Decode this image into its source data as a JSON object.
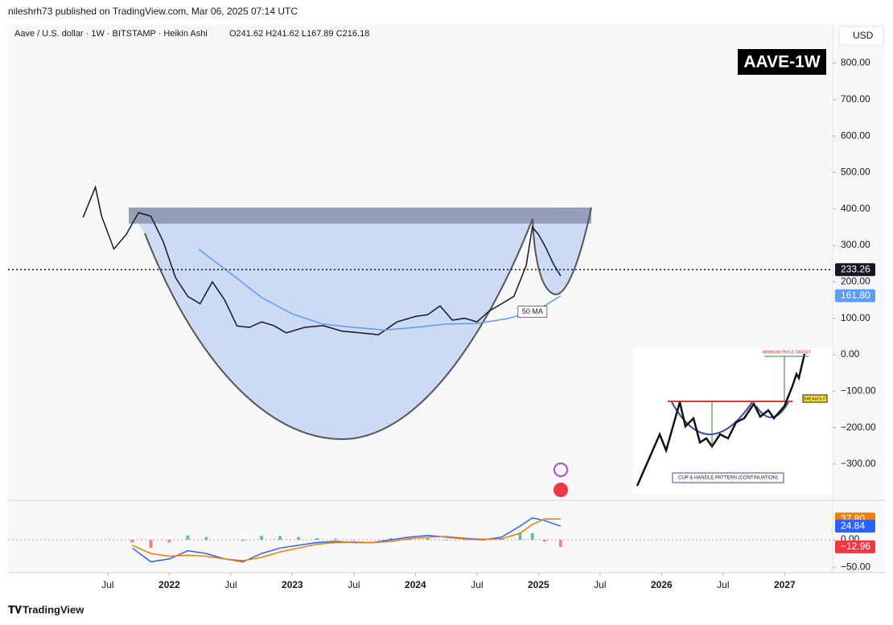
{
  "header": {
    "byline": "nileshrh73 published on TradingView.com, Mar 06, 2025 07:14 UTC",
    "legend": "Aave / U.S. dollar · 1W · BITSTAMP · Heikin Ashi",
    "ohlc": "O241.62 H241.62 L167.89 C216.18",
    "currency": "USD",
    "symbol_badge": "AAVE-1W"
  },
  "inset": {
    "target": "MINIMUM PRICE TARGET",
    "breakout": "BREAKOUT",
    "caption": "CUP & HANDLE PATTERN (CONTINUATION)"
  },
  "footer": {
    "brand": "TradingView"
  },
  "chart_data": [
    {
      "type": "line",
      "xlim": [
        2020.69,
        2027.39
      ],
      "ylim": [
        -395,
        907
      ],
      "yticks": [
        {
          "value": 800,
          "label": "800.00"
        },
        {
          "value": 700,
          "label": "700.00"
        },
        {
          "value": 600,
          "label": "600.00"
        },
        {
          "value": 500,
          "label": "500.00"
        },
        {
          "value": 400,
          "label": "400.00"
        },
        {
          "value": 300,
          "label": "300.00"
        },
        {
          "value": 200,
          "label": "200.00"
        },
        {
          "value": 100,
          "label": "100.00"
        },
        {
          "value": 0,
          "label": "0.00"
        },
        {
          "value": -100,
          "label": "−100.00"
        },
        {
          "value": -200,
          "label": "−200.00"
        },
        {
          "value": -300,
          "label": "−300.00"
        }
      ],
      "ymarkers": [
        {
          "value": 233.26,
          "label": "233.26",
          "color": "#131722",
          "line": true
        },
        {
          "value": 161.8,
          "label": "161.80",
          "color": "#5b9cf6",
          "line": false
        }
      ],
      "series": [
        {
          "color": "#131722",
          "x": [
            2021.3,
            2021.4,
            2021.45,
            2021.55,
            2021.65,
            2021.75,
            2021.85,
            2021.95,
            2022.05,
            2022.15,
            2022.25,
            2022.35,
            2022.45,
            2022.55,
            2022.65,
            2022.75,
            2022.85,
            2022.95,
            2023.1,
            2023.25,
            2023.4,
            2023.55,
            2023.7,
            2023.85,
            2024.0,
            2024.1,
            2024.2,
            2024.3,
            2024.4,
            2024.5,
            2024.6,
            2024.7,
            2024.8,
            2024.9,
            2024.95,
            2025.0,
            2025.05,
            2025.12,
            2025.18
          ],
          "values": [
            377,
            460,
            380,
            290,
            330,
            390,
            380,
            311,
            212,
            160,
            140,
            200,
            150,
            79,
            75,
            90,
            80,
            60,
            75,
            80,
            65,
            60,
            55,
            90,
            105,
            110,
            134,
            95,
            100,
            90,
            120,
            140,
            160,
            245,
            350,
            330,
            300,
            250,
            216
          ]
        },
        {
          "name": "50 MA",
          "color": "#5b9cf6",
          "x": [
            2022.24,
            2022.5,
            2022.75,
            2023.0,
            2023.25,
            2023.5,
            2023.75,
            2024.0,
            2024.25,
            2024.5,
            2024.75,
            2025.0,
            2025.18
          ],
          "values": [
            289,
            223,
            157,
            112,
            84,
            75,
            68,
            75,
            84,
            86,
            99,
            124,
            161.8
          ]
        }
      ]
    },
    {
      "type": "line",
      "xlim": [
        2020.69,
        2027.39
      ],
      "ylim": [
        -60,
        69
      ],
      "xticks": [
        {
          "value": 2021.5,
          "label": "Jul"
        },
        2022,
        {
          "value": 2022.5,
          "label": "Jul"
        },
        2023,
        {
          "value": 2023.5,
          "label": "Jul"
        },
        2024,
        {
          "value": 2024.5,
          "label": "Jul"
        },
        2025,
        {
          "value": 2025.5,
          "label": "Jul"
        },
        2026,
        {
          "value": 2026.5,
          "label": "Jul"
        },
        2027
      ],
      "yticks": [
        {
          "value": 0,
          "label": "0.00"
        },
        {
          "value": -50,
          "label": "−50.00"
        }
      ],
      "ymarkers": [
        {
          "value": 37.8,
          "label": "37.80",
          "color": "#f57c00"
        },
        {
          "value": 24.84,
          "label": "24.84",
          "color": "#2962ff"
        },
        {
          "value": -12.96,
          "label": "−12.96",
          "color": "#f23645"
        }
      ],
      "x": [
        2021.7,
        2021.85,
        2022.0,
        2022.15,
        2022.3,
        2022.45,
        2022.6,
        2022.75,
        2022.9,
        2023.05,
        2023.2,
        2023.35,
        2023.5,
        2023.65,
        2023.8,
        2023.95,
        2024.1,
        2024.25,
        2024.4,
        2024.55,
        2024.7,
        2024.85,
        2024.95,
        2025.05,
        2025.18
      ],
      "series": [
        {
          "type": "bar",
          "color": "#26a69a",
          "negative_color": "#ef5350",
          "values": [
            -5,
            -15,
            -5,
            8,
            5,
            0,
            -2,
            7,
            7,
            5,
            3,
            2,
            -1,
            0,
            3,
            3,
            3,
            -1,
            -1,
            -1,
            3,
            13,
            12,
            -3,
            -12.96
          ]
        },
        {
          "color": "#2962ff",
          "values": [
            -15,
            -40,
            -35,
            -20,
            -25,
            -35,
            -40,
            -25,
            -15,
            -10,
            -5,
            -3,
            -5,
            -5,
            0,
            5,
            8,
            5,
            2,
            0,
            5,
            25,
            40,
            35,
            24.84
          ]
        },
        {
          "color": "#f57c00",
          "values": [
            -10,
            -25,
            -30,
            -28,
            -30,
            -35,
            -38,
            -32,
            -22,
            -15,
            -8,
            -5,
            -4,
            -5,
            -3,
            2,
            5,
            6,
            3,
            1,
            2,
            12,
            28,
            38,
            37.8
          ]
        }
      ]
    }
  ]
}
